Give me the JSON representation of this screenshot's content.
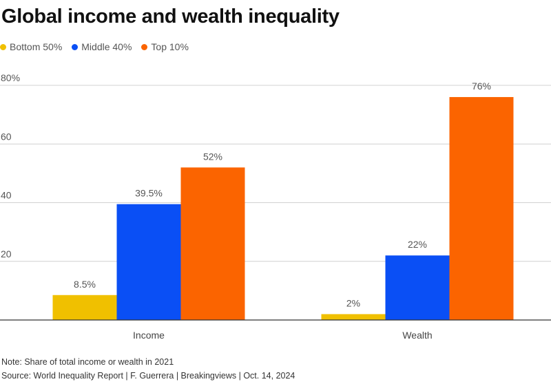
{
  "chart_data": {
    "type": "bar",
    "title": "Global income and wealth inequality",
    "categories": [
      "Income",
      "Wealth"
    ],
    "series": [
      {
        "name": "Bottom 50%",
        "color": "#f0c000",
        "values": [
          8.5,
          2
        ],
        "labels": [
          "8.5%",
          "2%"
        ]
      },
      {
        "name": "Middle 40%",
        "color": "#0a4ff5",
        "values": [
          39.5,
          22
        ],
        "labels": [
          "39.5%",
          "22%"
        ]
      },
      {
        "name": "Top 10%",
        "color": "#fb6400",
        "values": [
          52,
          76
        ],
        "labels": [
          "52%",
          "76%"
        ]
      }
    ],
    "ylim": [
      0,
      80
    ],
    "yticks": [
      20,
      40,
      60,
      80
    ],
    "ytick_labels": [
      "20",
      "40",
      "60",
      "80%"
    ],
    "grid": true,
    "legend": "top-left"
  },
  "note": "Note: Share of total income or wealth in 2021",
  "source": "Source: World Inequality Report | F. Guerrera | Breakingviews | Oct. 14, 2024"
}
